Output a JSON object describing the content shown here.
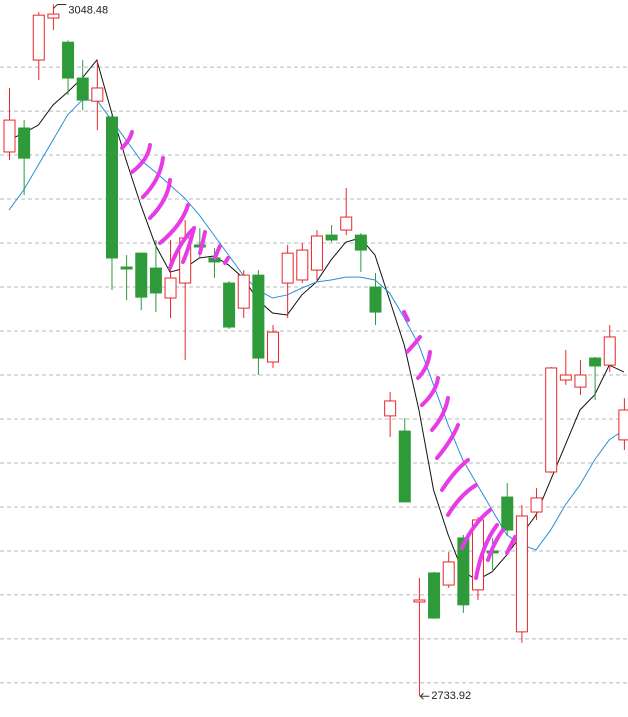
{
  "chart_data": {
    "type": "candlestick",
    "open": [
      2981.4,
      2992.3,
      3023.2,
      3042.3,
      3031.3,
      3015.0,
      3004.5,
      2997.3,
      2929.1,
      2935.4,
      2928.6,
      2915.0,
      2921.8,
      2939.1,
      2933.2,
      2921.8,
      2910.4,
      2925.4,
      2885.9,
      2921.8,
      2923.2,
      2927.7,
      2943.6,
      2945.9,
      2943.6,
      2920.0,
      2861.4,
      2854.5,
      2776.8,
      2790.0,
      2784.5,
      2805.9,
      2782.3,
      2800.0,
      2824.5,
      2763.2,
      2817.7,
      2835.9,
      2877.7,
      2874.5,
      2887.7,
      2884.5,
      2850.5
    ],
    "high": [
      3010.5,
      2995.9,
      3045.0,
      3048.48,
      3032.2,
      3023.2,
      3023.2,
      2998.2,
      2934.5,
      2935.4,
      2941.4,
      2941.4,
      2950.4,
      2946.8,
      2937.7,
      2922.7,
      2927.7,
      2927.7,
      2902.7,
      2939.1,
      2940.0,
      2945.9,
      2948.2,
      2965.0,
      2944.5,
      2926.4,
      2872.3,
      2860.4,
      2787.7,
      2790.5,
      2799.5,
      2807.3,
      2815.5,
      2805.9,
      2830.9,
      2820.9,
      2828.6,
      2883.6,
      2891.4,
      2886.8,
      2888.2,
      2902.7,
      2869.5
    ],
    "low": [
      2977.7,
      2961.8,
      3014.1,
      3036.8,
      3007.3,
      3000.4,
      2991.3,
      2918.6,
      2914.1,
      2909.5,
      2908.6,
      2905.9,
      2886.8,
      2933.2,
      2924.1,
      2900.9,
      2905.9,
      2880.0,
      2883.2,
      2905.9,
      2921.8,
      2923.2,
      2940.5,
      2943.6,
      2926.8,
      2902.7,
      2851.8,
      2822.3,
      2733.92,
      2769.1,
      2783.2,
      2771.8,
      2777.7,
      2791.4,
      2807.3,
      2758.2,
      2814.1,
      2835.5,
      2875.5,
      2870.9,
      2868.6,
      2881.4,
      2845.9
    ],
    "close": [
      2995.9,
      2978.6,
      3043.6,
      3044.1,
      3015.0,
      3005.0,
      3010.5,
      2933.2,
      2928.2,
      2915.4,
      2917.3,
      2924.1,
      2942.3,
      2938.2,
      2931.4,
      2901.8,
      2925.4,
      2887.7,
      2899.5,
      2935.4,
      2936.8,
      2943.2,
      2941.4,
      2951.8,
      2936.8,
      2908.6,
      2868.2,
      2822.3,
      2777.7,
      2769.5,
      2795.0,
      2775.5,
      2814.1,
      2799.1,
      2809.5,
      2815.9,
      2824.1,
      2883.2,
      2880.0,
      2880.0,
      2884.1,
      2897.3,
      2864.1
    ],
    "up_color": "#e8262a",
    "down_color": "#2f9a3a",
    "lines": [
      {
        "color": "#111111",
        "values": [
          2986.8,
          2990.0,
          2993.6,
          3002.7,
          3008.6,
          3015.0,
          3023.2,
          2999.5,
          2977.7,
          2957.3,
          2939.1,
          2926.8,
          2928.6,
          2933.2,
          2934.1,
          2930.0,
          2924.1,
          2914.1,
          2908.2,
          2907.3,
          2916.4,
          2922.3,
          2932.3,
          2940.4,
          2942.3,
          2934.5,
          2914.1,
          2893.6,
          2864.1,
          2827.7,
          2807.3,
          2790.5,
          2786.8,
          2790.5,
          2798.2,
          2807.3,
          2816.4,
          2832.3,
          2848.2,
          2864.1,
          2870.9,
          2884.5,
          2881.4
        ]
      },
      {
        "color": "#2a8fd6",
        "values": [
          2955.0,
          2964.1,
          2975.4,
          2986.8,
          2998.2,
          3005.0,
          3005.0,
          2995.9,
          2986.8,
          2977.7,
          2972.3,
          2966.4,
          2960.4,
          2952.7,
          2943.6,
          2934.5,
          2925.4,
          2918.6,
          2915.0,
          2916.4,
          2919.5,
          2922.3,
          2923.2,
          2924.5,
          2924.5,
          2923.2,
          2917.3,
          2905.9,
          2893.6,
          2875.5,
          2857.3,
          2841.4,
          2830.0,
          2818.6,
          2807.3,
          2802.7,
          2800.5,
          2809.5,
          2820.9,
          2830.0,
          2841.4,
          2850.5,
          2855.0
        ]
      }
    ],
    "ylim": [
      2724.5,
      3050.5
    ],
    "yticks": [
      2740,
      2760,
      2780,
      2800,
      2820,
      2840,
      2860,
      2880,
      2900,
      2920,
      2940,
      2960,
      2980,
      3000,
      3020
    ],
    "grid": true,
    "high_label": "3048.48",
    "low_label": "2733.92"
  }
}
